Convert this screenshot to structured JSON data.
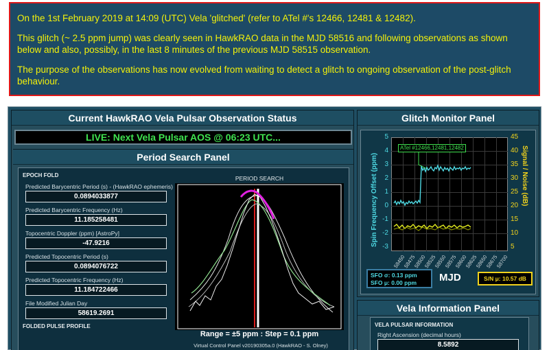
{
  "notice": {
    "p1": "On the 1st February 2019 at 14:09 (UTC) Vela 'glitched' (refer to ATel #'s 12466, 12481 & 12482).",
    "p2": "This glitch (~ 2.5 ppm jump) was clearly seen in HawkRAO data in the MJD 58516 and following observations as shown below and also, possibly, in the last 8 minutes of the previous MJD 58515 observation.",
    "p3": "The purpose of the observations has now evolved from waiting to detect a glitch to ongoing observation of the post-glitch behaviour."
  },
  "status": {
    "title": "Current HawkRAO Vela Pulsar Observation Status",
    "live": "LIVE: Next Vela Pulsar AOS @ 06:23 UTC..."
  },
  "period_panel": {
    "title": "Period Search Panel",
    "epoch_fold": "EPOCH FOLD",
    "fields": [
      {
        "label": "Predicted Barycentric Period (s) - (HawkRAO ephemeris)",
        "value": "0.0894033877"
      },
      {
        "label": "Predicted Barycentric Frequency (Hz)",
        "value": "11.185258481"
      },
      {
        "label": "Topocentric Doppler (ppm) [AstroPy]",
        "value": "-47.9216"
      },
      {
        "label": "Predicted Topocentric Period (s)",
        "value": "0.0894076722"
      },
      {
        "label": "Predicted Topocentric Frequency (Hz)",
        "value": "11.184722466"
      },
      {
        "label": "File Modified Julian Day",
        "value": "58619.2691"
      }
    ],
    "folded_pulse_profile": "FOLDED PULSE PROFILE",
    "search_title": "PERIOD SEARCH",
    "search_caption": "Range = ±5 ppm : Step = 0.1 ppm",
    "version": "Virtual Control Panel v20190305a.0 (HawkRAO - S. Olney)"
  },
  "glitch_panel": {
    "title": "Glitch Monitor Panel",
    "y_left_label": "Spin Frequency Offset (ppm)",
    "y_right_label": "Signal / Noise (dB)",
    "y_left_ticks": [
      "5",
      "4",
      "3",
      "2",
      "1",
      "0",
      "-1",
      "-2",
      "-3"
    ],
    "y_right_ticks": [
      "45",
      "40",
      "35",
      "30",
      "25",
      "20",
      "15",
      "10",
      "5"
    ],
    "x_ticks": [
      "58450",
      "58475",
      "58500",
      "58525",
      "58550",
      "58575",
      "58600",
      "58625",
      "58650",
      "58675",
      "58700"
    ],
    "atel_label": "ATel #12466,12481,12482",
    "sfo_sigma": "SFO σ: 0.13 ppm",
    "sfo_mu": "SFO μ: 0.00 ppm",
    "x_label": "MJD",
    "sn_mu": "S/N μ: 10.57 dB",
    "colors": {
      "sfo": "#4ed9e3",
      "sn": "#e8f020",
      "atel": "#3fe24f"
    }
  },
  "vela_panel": {
    "title": "Vela Information Panel",
    "section": "VELA PULSAR INFORMATION",
    "ra_label": "Right Ascension (decimal hours)",
    "ra_value": "8.5892"
  }
}
